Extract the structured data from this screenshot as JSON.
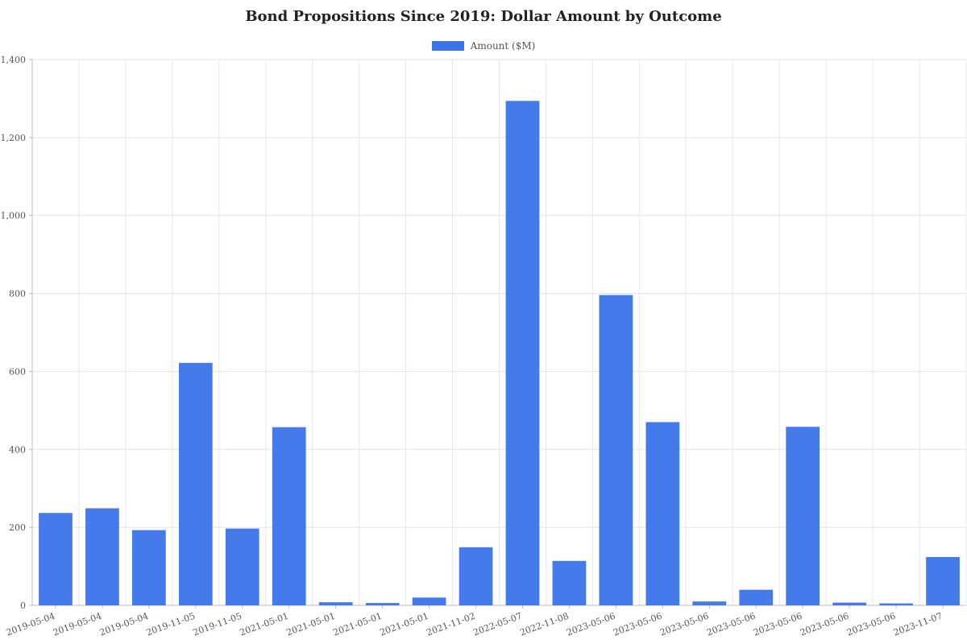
{
  "chart_data": {
    "type": "bar",
    "title": "Bond Propositions Since 2019: Dollar Amount by Outcome",
    "legend": {
      "placement": "top-center",
      "entries": [
        "Amount ($M)"
      ]
    },
    "series": [
      {
        "name": "Amount ($M)",
        "color": "#3b73ea",
        "values": [
          237,
          249,
          193,
          622,
          197,
          457,
          8,
          6,
          20,
          149,
          1294,
          114,
          796,
          470,
          10,
          40,
          458,
          7,
          5,
          124
        ]
      }
    ],
    "categories": [
      "2019-05-04",
      "2019-05-04",
      "2019-05-04",
      "2019-11-05",
      "2019-11-05",
      "2021-05-01",
      "2021-05-01",
      "2021-05-01",
      "2021-05-01",
      "2021-11-02",
      "2022-05-07",
      "2022-11-08",
      "2023-05-06",
      "2023-05-06",
      "2023-05-06",
      "2023-05-06",
      "2023-05-06",
      "2023-05-06",
      "2023-05-06",
      "2023-11-07"
    ],
    "ylim": [
      0,
      1400
    ],
    "yticks": [
      0,
      200,
      400,
      600,
      800,
      1000,
      1200,
      1400
    ],
    "ytick_labels": [
      "0",
      "200",
      "400",
      "600",
      "800",
      "1,000",
      "1,200",
      "1,400"
    ],
    "grid": true,
    "xlabel": "",
    "ylabel": ""
  }
}
